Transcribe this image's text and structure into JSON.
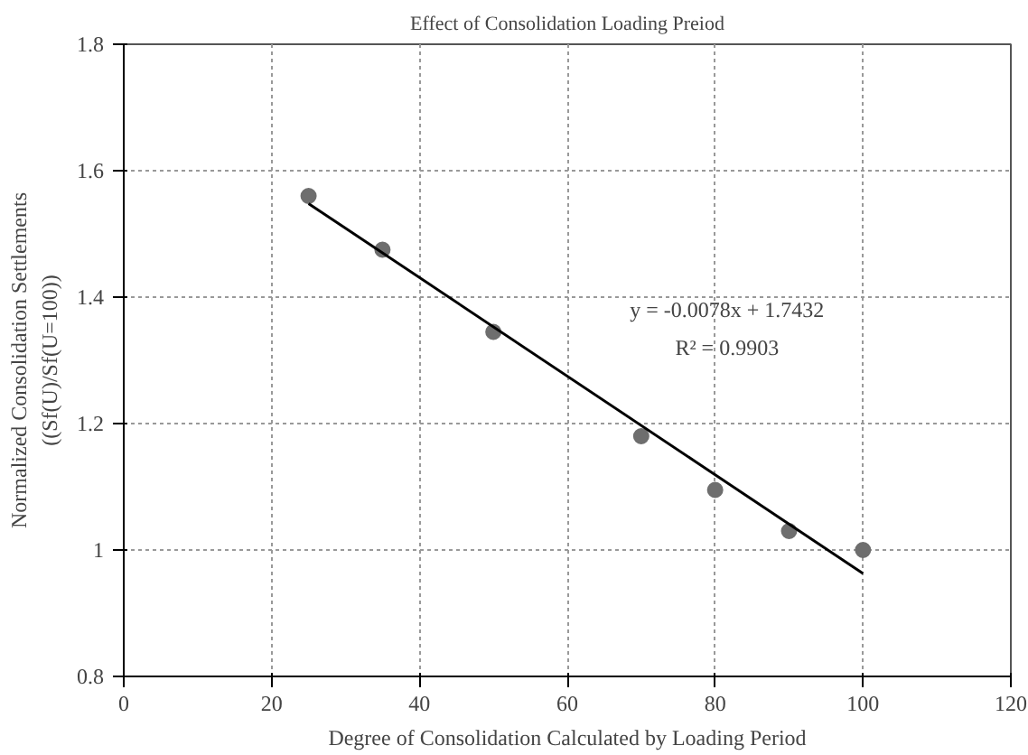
{
  "chart_data": {
    "type": "scatter",
    "title": "Effect of Consolidation Loading Preiod",
    "xlabel": "Degree of Consolidation Calculated by Loading Period",
    "ylabel": "Normalized Consolidation Settlements\n((Sf(U)/Sf(U=100))",
    "annotations": [
      "y = -0.0078x + 1.7432",
      "R² = 0.9903"
    ],
    "series": [
      {
        "marker": "circle",
        "color": "#6e6e6e",
        "x": [
          25,
          35,
          50,
          70,
          80,
          90,
          100
        ],
        "values": [
          1.56,
          1.475,
          1.345,
          1.18,
          1.095,
          1.03,
          1.0
        ]
      },
      {
        "type": "line",
        "marker": "none",
        "color": "#000000",
        "x": [
          25,
          100
        ],
        "values": [
          1.548,
          0.963
        ]
      }
    ],
    "xlim": [
      0,
      120
    ],
    "ylim": [
      0.8,
      1.8
    ],
    "xticks": [
      0,
      20,
      40,
      60,
      80,
      100,
      120
    ],
    "yticks": [
      0.8,
      1,
      1.2,
      1.4,
      1.6,
      1.8
    ],
    "grid": true
  }
}
